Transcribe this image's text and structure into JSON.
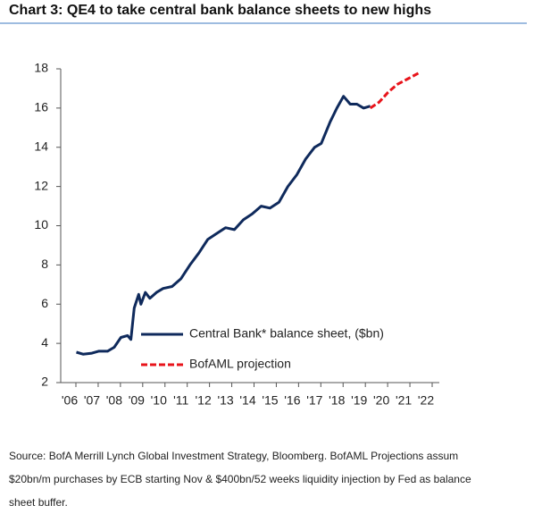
{
  "chart_data": {
    "type": "line",
    "title": "Chart 3: QE4 to take central bank balance sheets to new highs",
    "note": "Source: BofA Merrill Lynch Global Investment Strategy, Bloomberg. BofAML Projections assum $20bn/m purchases by ECB starting Nov & $400bn/52 weeks liquidity injection by Fed as balance sheet buffer.",
    "xlim": [
      2006,
      2022
    ],
    "xticks": [
      {
        "value": 2006,
        "label": "'06"
      },
      {
        "value": 2007,
        "label": "'07"
      },
      {
        "value": 2008,
        "label": "'08"
      },
      {
        "value": 2009,
        "label": "'09"
      },
      {
        "value": 2010,
        "label": "'10"
      },
      {
        "value": 2011,
        "label": "'11"
      },
      {
        "value": 2012,
        "label": "'12"
      },
      {
        "value": 2013,
        "label": "'13"
      },
      {
        "value": 2014,
        "label": "'14"
      },
      {
        "value": 2015,
        "label": "'15"
      },
      {
        "value": 2016,
        "label": "'16"
      },
      {
        "value": 2017,
        "label": "'17"
      },
      {
        "value": 2018,
        "label": "'18"
      },
      {
        "value": 2019,
        "label": "'19"
      },
      {
        "value": 2020,
        "label": "'20"
      },
      {
        "value": 2021,
        "label": "'21"
      },
      {
        "value": 2022,
        "label": "'22"
      }
    ],
    "ylim": [
      2,
      18
    ],
    "yticks": [
      2,
      4,
      6,
      8,
      10,
      12,
      14,
      16,
      18
    ],
    "legend": "lower center",
    "series": [
      {
        "name": "Central Bank* balance sheet, ($bn)",
        "color": "#0f2a5c",
        "dash": false,
        "x": [
          2006.3,
          2006.6,
          2007.0,
          2007.3,
          2007.7,
          2008.0,
          2008.3,
          2008.6,
          2008.75,
          2008.9,
          2009.1,
          2009.2,
          2009.4,
          2009.6,
          2009.9,
          2010.2,
          2010.6,
          2011.0,
          2011.4,
          2011.8,
          2012.2,
          2012.6,
          2013.0,
          2013.4,
          2013.8,
          2014.2,
          2014.6,
          2015.0,
          2015.4,
          2015.8,
          2016.2,
          2016.6,
          2017.0,
          2017.3,
          2017.7,
          2018.0,
          2018.3,
          2018.6,
          2018.9,
          2019.2,
          2019.5
        ],
        "values": [
          3.55,
          3.45,
          3.5,
          3.6,
          3.6,
          3.8,
          4.3,
          4.4,
          4.2,
          5.8,
          6.5,
          6.0,
          6.6,
          6.3,
          6.6,
          6.8,
          6.9,
          7.3,
          8.0,
          8.6,
          9.3,
          9.6,
          9.9,
          9.8,
          10.3,
          10.6,
          11.0,
          10.9,
          11.2,
          12.0,
          12.6,
          13.4,
          14.0,
          14.2,
          15.3,
          16.0,
          16.6,
          16.2,
          16.2,
          16.0,
          16.1
        ]
      },
      {
        "name": "BofAML projection",
        "color": "#e8141b",
        "dash": true,
        "x": [
          2019.5,
          2019.9,
          2020.3,
          2020.7,
          2021.2,
          2021.7
        ],
        "values": [
          16.0,
          16.3,
          16.8,
          17.2,
          17.5,
          17.8
        ]
      }
    ]
  }
}
